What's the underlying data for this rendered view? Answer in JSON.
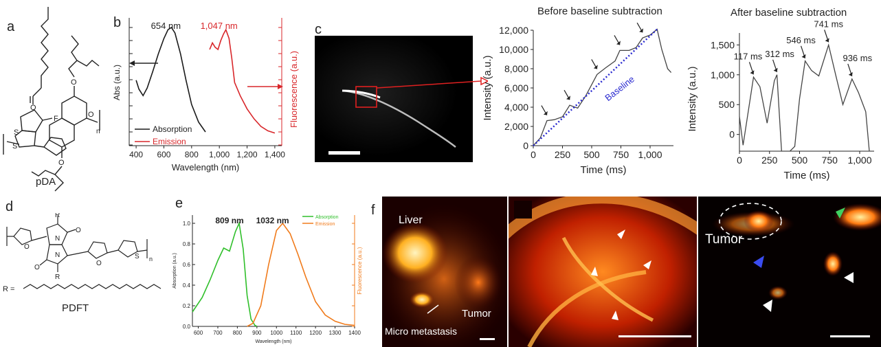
{
  "panels": {
    "a": {
      "letter": "a",
      "molecule_label": "pDA",
      "atom_F": "F",
      "atom_S1": "S",
      "atom_S2": "S",
      "atom_O1": "O",
      "atom_O2": "O",
      "atom_O3": "O",
      "atom_O4": "O",
      "sub_n": "n"
    },
    "b": {
      "letter": "b",
      "peak_abs": "654 nm",
      "peak_em": "1,047 nm",
      "legend_abs": "Absorption",
      "legend_em": "Emission",
      "colors": {
        "abs": "#1a1a1a",
        "em": "#d8262a"
      }
    },
    "c": {
      "letter": "c",
      "title_before": "Before baseline subtraction",
      "title_after": "After baseline subtraction",
      "baseline_label": "Baseline",
      "peaks": [
        "117 ms",
        "312 ms",
        "546 ms",
        "741 ms",
        "936 ms"
      ]
    },
    "d": {
      "letter": "d",
      "molecule_label": "PDFT",
      "r_eq": "R =",
      "r1": "R",
      "r2": "R",
      "sub_n": "n",
      "atom_N1": "N",
      "atom_N2": "N",
      "atom_S": "S",
      "o1": "O",
      "o2": "O",
      "o3": "O",
      "o4": "O"
    },
    "e": {
      "letter": "e",
      "peak_abs": "809 nm",
      "peak_em": "1032 nm",
      "legend_abs": "Absorption",
      "legend_em": "Emission",
      "colors": {
        "abs": "#2fbf2a",
        "em": "#f07a1a"
      }
    },
    "f": {
      "letter": "f",
      "label_liver": "Liver",
      "label_tumor": "Tumor",
      "label_micro": "Micro metastasis",
      "label_tumor2": "Tumor"
    }
  },
  "chart_data": [
    {
      "id": "b",
      "type": "line",
      "xlabel": "Wavelength (nm)",
      "ylabel_left": "Abs (a.u.)",
      "ylabel_right": "Fluorescence (a.u.)",
      "xticks": [
        "400",
        "600",
        "800",
        "1,000",
        "1,200",
        "1,400"
      ],
      "xlim": [
        350,
        1450
      ],
      "series": [
        {
          "name": "Absorption",
          "x": [
            400,
            420,
            450,
            480,
            520,
            560,
            600,
            630,
            654,
            680,
            720,
            760,
            800,
            850,
            900
          ],
          "y": [
            0.52,
            0.44,
            0.38,
            0.45,
            0.6,
            0.76,
            0.9,
            0.98,
            1.0,
            0.95,
            0.76,
            0.52,
            0.3,
            0.14,
            0.05
          ]
        },
        {
          "name": "Emission",
          "x": [
            930,
            950,
            970,
            990,
            1010,
            1030,
            1047,
            1070,
            1090,
            1110,
            1150,
            1200,
            1250,
            1300,
            1350,
            1400
          ],
          "y": [
            0.8,
            0.86,
            0.82,
            0.8,
            0.88,
            0.94,
            0.98,
            0.9,
            0.72,
            0.5,
            0.38,
            0.26,
            0.17,
            0.1,
            0.06,
            0.04
          ]
        }
      ]
    },
    {
      "id": "c-before",
      "type": "line",
      "title": "Before baseline subtraction",
      "xlabel": "Time (ms)",
      "ylabel": "Intensity (a.u.)",
      "xticks": [
        "0",
        "250",
        "500",
        "750",
        "1,000"
      ],
      "yticks": [
        "0",
        "2,000",
        "4,000",
        "6,000",
        "8,000",
        "10,000",
        "12,000"
      ],
      "xlim": [
        0,
        1200
      ],
      "ylim": [
        0,
        12000
      ],
      "series": [
        {
          "name": "Signal",
          "x": [
            0,
            60,
            117,
            180,
            250,
            312,
            380,
            450,
            546,
            620,
            700,
            741,
            820,
            880,
            936,
            1000,
            1060,
            1100,
            1150,
            1180
          ],
          "y": [
            0,
            800,
            2600,
            2700,
            3000,
            4200,
            3900,
            5200,
            7400,
            8100,
            8800,
            9900,
            9900,
            10200,
            11200,
            11500,
            12100,
            10000,
            8000,
            7600
          ]
        },
        {
          "name": "Baseline",
          "x": [
            0,
            1060
          ],
          "y": [
            0,
            12100
          ]
        }
      ]
    },
    {
      "id": "c-after",
      "type": "line",
      "title": "After baseline subtraction",
      "xlabel": "Time (ms)",
      "ylabel": "Intensity (a.u.)",
      "xticks": [
        "0",
        "250",
        "500",
        "750",
        "1,000"
      ],
      "yticks": [
        "0",
        "500",
        "1,000",
        "1,500"
      ],
      "xlim": [
        0,
        1120
      ],
      "ylim": [
        -280,
        1700
      ],
      "series": [
        {
          "name": "Signal",
          "x": [
            0,
            30,
            117,
            170,
            230,
            290,
            312,
            350,
            380,
            420,
            460,
            500,
            546,
            600,
            660,
            741,
            800,
            860,
            936,
            990,
            1050,
            1080
          ],
          "y": [
            300,
            -180,
            960,
            800,
            190,
            900,
            1000,
            -280,
            -350,
            -300,
            -200,
            600,
            1230,
            1070,
            980,
            1500,
            1000,
            500,
            930,
            700,
            380,
            -280
          ]
        }
      ]
    },
    {
      "id": "e",
      "type": "line",
      "xlabel": "Wavelength (nm)",
      "ylabel_left": "Absorption (a.u.)",
      "ylabel_right": "Fluorescence (a.u.)",
      "xticks": [
        "600",
        "700",
        "800",
        "900",
        "1000",
        "1100",
        "1200",
        "1300",
        "1400"
      ],
      "yticks": [
        "0.0",
        "0.2",
        "0.4",
        "0.6",
        "0.8",
        "1.0"
      ],
      "xlim": [
        570,
        1400
      ],
      "ylim": [
        0,
        1.08
      ],
      "series": [
        {
          "name": "Absorption",
          "x": [
            570,
            620,
            660,
            700,
            730,
            760,
            790,
            809,
            830,
            850,
            870,
            890,
            900
          ],
          "y": [
            0.14,
            0.28,
            0.45,
            0.64,
            0.76,
            0.73,
            0.92,
            1.0,
            0.75,
            0.3,
            0.07,
            0.01,
            0.0
          ]
        },
        {
          "name": "Emission",
          "x": [
            850,
            880,
            920,
            960,
            1000,
            1032,
            1070,
            1110,
            1150,
            1200,
            1250,
            1300,
            1350,
            1400
          ],
          "y": [
            0.0,
            0.03,
            0.2,
            0.6,
            0.93,
            1.0,
            0.9,
            0.7,
            0.48,
            0.24,
            0.11,
            0.05,
            0.02,
            0.01
          ]
        }
      ]
    }
  ]
}
